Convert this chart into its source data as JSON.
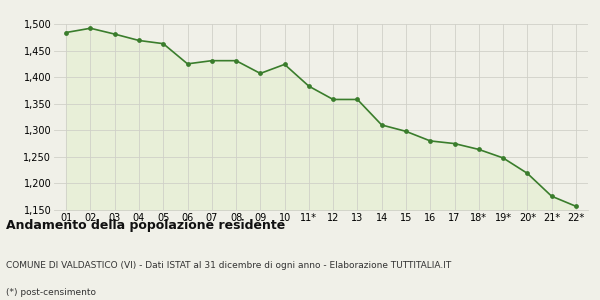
{
  "x_labels": [
    "01",
    "02",
    "03",
    "04",
    "05",
    "06",
    "07",
    "08",
    "09",
    "10",
    "11*",
    "12",
    "13",
    "14",
    "15",
    "16",
    "17",
    "18*",
    "19*",
    "20*",
    "21*",
    "22*"
  ],
  "y_values": [
    1484,
    1492,
    1481,
    1469,
    1463,
    1425,
    1431,
    1431,
    1407,
    1424,
    1383,
    1358,
    1358,
    1310,
    1298,
    1280,
    1275,
    1264,
    1248,
    1219,
    1176,
    1157
  ],
  "line_color": "#3a7d2c",
  "fill_color": "#e8efd8",
  "marker_color": "#3a7d2c",
  "background_color": "#f0f0e8",
  "ylim": [
    1150,
    1500
  ],
  "yticks": [
    1150,
    1200,
    1250,
    1300,
    1350,
    1400,
    1450,
    1500
  ],
  "title": "Andamento della popolazione residente",
  "subtitle": "COMUNE DI VALDASTICO (VI) - Dati ISTAT al 31 dicembre di ogni anno - Elaborazione TUTTITALIA.IT",
  "footnote": "(*) post-censimento",
  "title_fontsize": 9,
  "subtitle_fontsize": 6.5,
  "footnote_fontsize": 6.5,
  "tick_fontsize": 7,
  "grid_color": "#d0d0c8"
}
